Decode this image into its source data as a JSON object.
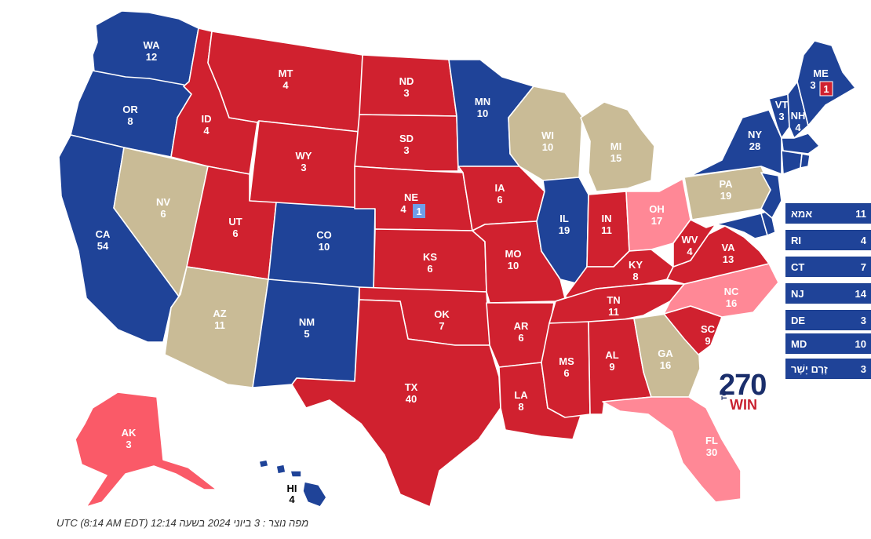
{
  "colors": {
    "dem_solid": "#1f4398",
    "rep_solid": "#d0212f",
    "rep_likely": "#fa5a68",
    "rep_leans": "#ff8896",
    "tossup": "#c9bb96",
    "small_box_bg": "#1f4398",
    "me_badge": "#d0212f",
    "ne_badge": "#6f9ee8"
  },
  "states": {
    "WA": {
      "abbr": "WA",
      "ev": "12",
      "rating": "dem_solid"
    },
    "OR": {
      "abbr": "OR",
      "ev": "8",
      "rating": "dem_solid"
    },
    "CA": {
      "abbr": "CA",
      "ev": "54",
      "rating": "dem_solid"
    },
    "NV": {
      "abbr": "NV",
      "ev": "6",
      "rating": "tossup"
    },
    "ID": {
      "abbr": "ID",
      "ev": "4",
      "rating": "rep_solid"
    },
    "MT": {
      "abbr": "MT",
      "ev": "4",
      "rating": "rep_solid"
    },
    "WY": {
      "abbr": "WY",
      "ev": "3",
      "rating": "rep_solid"
    },
    "UT": {
      "abbr": "UT",
      "ev": "6",
      "rating": "rep_solid"
    },
    "AZ": {
      "abbr": "AZ",
      "ev": "11",
      "rating": "tossup"
    },
    "CO": {
      "abbr": "CO",
      "ev": "10",
      "rating": "dem_solid"
    },
    "NM": {
      "abbr": "NM",
      "ev": "5",
      "rating": "dem_solid"
    },
    "ND": {
      "abbr": "ND",
      "ev": "3",
      "rating": "rep_solid"
    },
    "SD": {
      "abbr": "SD",
      "ev": "3",
      "rating": "rep_solid"
    },
    "NE": {
      "abbr": "NE",
      "ev": "4",
      "rating": "rep_solid",
      "badge": "1"
    },
    "KS": {
      "abbr": "KS",
      "ev": "6",
      "rating": "rep_solid"
    },
    "OK": {
      "abbr": "OK",
      "ev": "7",
      "rating": "rep_solid"
    },
    "TX": {
      "abbr": "TX",
      "ev": "40",
      "rating": "rep_solid"
    },
    "MN": {
      "abbr": "MN",
      "ev": "10",
      "rating": "dem_solid"
    },
    "IA": {
      "abbr": "IA",
      "ev": "6",
      "rating": "rep_solid"
    },
    "MO": {
      "abbr": "MO",
      "ev": "10",
      "rating": "rep_solid"
    },
    "AR": {
      "abbr": "AR",
      "ev": "6",
      "rating": "rep_solid"
    },
    "LA": {
      "abbr": "LA",
      "ev": "8",
      "rating": "rep_solid"
    },
    "WI": {
      "abbr": "WI",
      "ev": "10",
      "rating": "tossup"
    },
    "IL": {
      "abbr": "IL",
      "ev": "19",
      "rating": "dem_solid"
    },
    "MI": {
      "abbr": "MI",
      "ev": "15",
      "rating": "tossup"
    },
    "IN": {
      "abbr": "IN",
      "ev": "11",
      "rating": "rep_solid"
    },
    "OH": {
      "abbr": "OH",
      "ev": "17",
      "rating": "rep_leans"
    },
    "KY": {
      "abbr": "KY",
      "ev": "8",
      "rating": "rep_solid"
    },
    "TN": {
      "abbr": "TN",
      "ev": "11",
      "rating": "rep_solid"
    },
    "MS": {
      "abbr": "MS",
      "ev": "6",
      "rating": "rep_solid"
    },
    "AL": {
      "abbr": "AL",
      "ev": "9",
      "rating": "rep_solid"
    },
    "GA": {
      "abbr": "GA",
      "ev": "16",
      "rating": "tossup"
    },
    "FL": {
      "abbr": "FL",
      "ev": "30",
      "rating": "rep_leans"
    },
    "SC": {
      "abbr": "SC",
      "ev": "9",
      "rating": "rep_solid"
    },
    "NC": {
      "abbr": "NC",
      "ev": "16",
      "rating": "rep_leans"
    },
    "VA": {
      "abbr": "VA",
      "ev": "13",
      "rating": "rep_solid"
    },
    "WV": {
      "abbr": "WV",
      "ev": "4",
      "rating": "rep_solid"
    },
    "PA": {
      "abbr": "PA",
      "ev": "19",
      "rating": "tossup"
    },
    "NY": {
      "abbr": "NY",
      "ev": "28",
      "rating": "dem_solid"
    },
    "VT": {
      "abbr": "VT",
      "ev": "3",
      "rating": "dem_solid"
    },
    "NH": {
      "abbr": "NH",
      "ev": "4",
      "rating": "dem_solid"
    },
    "ME": {
      "abbr": "ME",
      "ev": "3",
      "rating": "dem_solid",
      "badge": "1"
    },
    "AK": {
      "abbr": "AK",
      "ev": "3",
      "rating": "rep_likely"
    },
    "HI": {
      "abbr": "HI",
      "ev": "4",
      "rating": "dem_solid"
    }
  },
  "small_states": [
    {
      "abbr": "אמא",
      "ev": "11"
    },
    {
      "abbr": "RI",
      "ev": "4"
    },
    {
      "abbr": "CT",
      "ev": "7"
    },
    {
      "abbr": "NJ",
      "ev": "14"
    },
    {
      "abbr": "DE",
      "ev": "3"
    },
    {
      "abbr": "MD",
      "ev": "10"
    },
    {
      "abbr": "זֶרֶם יָשָׁר",
      "ev": "3"
    }
  ],
  "logo": {
    "number": "270",
    "to": "TO",
    "win": "WIN"
  },
  "footer": "מפה נוצר : 3 ביוני 2024 בשעה 12:14 UTC (8:14 AM EDT)"
}
